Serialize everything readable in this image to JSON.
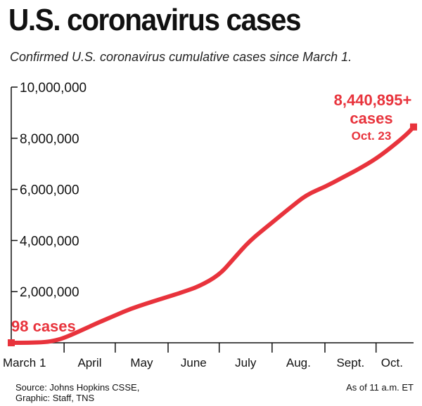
{
  "header": {
    "title": "U.S. coronavirus cases",
    "subtitle": "Confirmed U.S. coronavirus cumulative cases since March 1."
  },
  "footer": {
    "source_line1": "Source: Johns Hopkins CSSE,",
    "source_line2": "Graphic: Staff, TNS",
    "timestamp": "As of 11 a.m. ET"
  },
  "colors": {
    "line": "#e8333c",
    "axis": "#111111",
    "text": "#111111"
  },
  "annotations": {
    "start_label": "98 cases",
    "end_value": "8,440,895+",
    "end_unit": "cases",
    "end_date": "Oct. 23"
  },
  "chart_data": {
    "type": "line",
    "title": "U.S. coronavirus cases",
    "xlabel": "",
    "ylabel": "",
    "x_unit": "days since March 1",
    "xlim": [
      0,
      236
    ],
    "ylim": [
      0,
      10000000
    ],
    "y_ticks": [
      2000000,
      4000000,
      6000000,
      8000000,
      10000000
    ],
    "y_tick_labels": [
      "2,000,000",
      "4,000,000",
      "6,000,000",
      "8,000,000",
      "10,000,000"
    ],
    "x_ticks": [
      0,
      31,
      61,
      92,
      122,
      153,
      184,
      214
    ],
    "x_tick_labels": [
      "March 1",
      "April",
      "May",
      "June",
      "July",
      "Aug.",
      "Sept.",
      "Oct."
    ],
    "grid": false,
    "series": [
      {
        "name": "Cumulative cases",
        "x": [
          0,
          10,
          20,
          26,
          31,
          40,
          50,
          61,
          70,
          80,
          92,
          100,
          110,
          122,
          130,
          140,
          153,
          163,
          173,
          184,
          194,
          204,
          214,
          222,
          232,
          236
        ],
        "y": [
          98,
          1000,
          25000,
          90000,
          190000,
          450000,
          760000,
          1070000,
          1330000,
          1550000,
          1800000,
          1970000,
          2200000,
          2650000,
          3250000,
          4000000,
          4700000,
          5250000,
          5780000,
          6100000,
          6450000,
          6800000,
          7200000,
          7600000,
          8150000,
          8440895
        ]
      }
    ]
  }
}
